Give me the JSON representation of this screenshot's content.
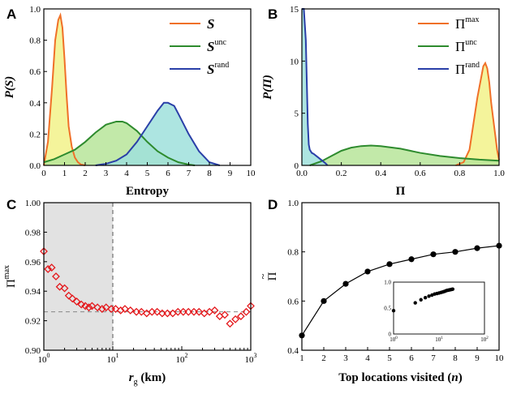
{
  "colors": {
    "max_line": "#f07028",
    "unc_line": "#2e8b2e",
    "rand_line": "#2a3fa8",
    "max_fill": "#f2f28a",
    "unc_fill": "#b7e59a",
    "rand_fill": "#9fe0dc",
    "marker_red": "#e4171b",
    "shade_gray": "#e2e2e2"
  },
  "chart_data": [
    {
      "panel": "A",
      "type": "area",
      "xlabel": "Entropy",
      "ylabel": "P(S)",
      "xlim": [
        0,
        10
      ],
      "ylim": [
        0,
        1.0
      ],
      "xticks": [
        "0",
        "1",
        "2",
        "3",
        "4",
        "5",
        "6",
        "7",
        "8",
        "9",
        "10"
      ],
      "yticks": [
        "0.0",
        "0.2",
        "0.4",
        "0.6",
        "0.8",
        "1.0"
      ],
      "legend_position": "top-right",
      "series": [
        {
          "name": "S",
          "sup": "",
          "color_key": "max",
          "x": [
            0,
            0.2,
            0.4,
            0.55,
            0.7,
            0.8,
            0.9,
            1.0,
            1.1,
            1.2,
            1.35,
            1.5,
            1.65,
            1.8,
            2.0
          ],
          "y": [
            0,
            0.15,
            0.5,
            0.8,
            0.93,
            0.96,
            0.88,
            0.68,
            0.45,
            0.25,
            0.12,
            0.05,
            0.02,
            0.005,
            0
          ]
        },
        {
          "name": "S",
          "sup": "unc",
          "color_key": "unc",
          "x": [
            0,
            0.5,
            1,
            1.5,
            2,
            2.5,
            3,
            3.5,
            3.8,
            4,
            4.5,
            5,
            5.5,
            6,
            6.5,
            7,
            7.3
          ],
          "y": [
            0.02,
            0.04,
            0.07,
            0.1,
            0.15,
            0.21,
            0.26,
            0.28,
            0.28,
            0.27,
            0.22,
            0.15,
            0.09,
            0.05,
            0.02,
            0.005,
            0
          ]
        },
        {
          "name": "S",
          "sup": "rand",
          "color_key": "rand",
          "x": [
            2.5,
            3,
            3.5,
            4,
            4.5,
            5,
            5.5,
            5.8,
            6,
            6.3,
            6.5,
            7,
            7.5,
            8,
            8.5
          ],
          "y": [
            0,
            0.01,
            0.03,
            0.07,
            0.15,
            0.25,
            0.35,
            0.4,
            0.4,
            0.38,
            0.33,
            0.2,
            0.09,
            0.02,
            0
          ]
        }
      ]
    },
    {
      "panel": "B",
      "type": "area",
      "xlabel": "Π",
      "ylabel": "P(Π)",
      "xlim": [
        0,
        1.0
      ],
      "ylim": [
        0,
        15
      ],
      "xticks": [
        "0.0",
        "0.2",
        "0.4",
        "0.6",
        "0.8",
        "1.0"
      ],
      "yticks": [
        "0",
        "5",
        "10",
        "15"
      ],
      "legend_position": "top-right",
      "series": [
        {
          "name": "Π",
          "sup": "max",
          "color_key": "max",
          "x": [
            0.78,
            0.82,
            0.85,
            0.87,
            0.89,
            0.91,
            0.92,
            0.93,
            0.94,
            0.95,
            0.96,
            0.97,
            0.98,
            0.99,
            1.0
          ],
          "y": [
            0,
            0.3,
            1.5,
            4,
            6.5,
            8.5,
            9.5,
            9.8,
            9.3,
            8,
            6,
            4.5,
            3,
            1.5,
            0.5
          ]
        },
        {
          "name": "Π",
          "sup": "unc",
          "color_key": "unc",
          "x": [
            0.04,
            0.1,
            0.15,
            0.2,
            0.25,
            0.3,
            0.35,
            0.4,
            0.5,
            0.6,
            0.7,
            0.8,
            0.9,
            1.0
          ],
          "y": [
            0,
            0.4,
            0.9,
            1.4,
            1.7,
            1.85,
            1.9,
            1.85,
            1.6,
            1.2,
            0.9,
            0.7,
            0.55,
            0.45
          ]
        },
        {
          "name": "Π",
          "sup": "rand",
          "color_key": "rand",
          "x": [
            0,
            0.01,
            0.02,
            0.025,
            0.03,
            0.035,
            0.04,
            0.05,
            0.06,
            0.08,
            0.1,
            0.12,
            0.13
          ],
          "y": [
            15,
            15,
            12,
            8,
            4,
            2,
            1.5,
            1.2,
            1.1,
            0.8,
            0.5,
            0.2,
            0
          ]
        }
      ]
    },
    {
      "panel": "C",
      "type": "scatter",
      "xlabel": "r",
      "xlabel_sub": "g",
      "xlabel_unit": "(km)",
      "ylabel": "Π",
      "ylabel_sup": "max",
      "xscale": "log",
      "xlim": [
        1,
        1000
      ],
      "ylim": [
        0.9,
        1.0
      ],
      "xticks": [
        {
          "b": "10",
          "e": "0"
        },
        {
          "b": "10",
          "e": "1"
        },
        {
          "b": "10",
          "e": "2"
        },
        {
          "b": "10",
          "e": "3"
        }
      ],
      "yticks": [
        "0.90",
        "0.92",
        "0.94",
        "0.96",
        "0.98",
        "1.00"
      ],
      "shaded_x": [
        1,
        10
      ],
      "dashed_vline": 10,
      "dashed_hline": 0.926,
      "x": [
        1.0,
        1.15,
        1.3,
        1.5,
        1.7,
        2.0,
        2.3,
        2.6,
        3.0,
        3.5,
        4.0,
        4.5,
        5.0,
        6.0,
        7.0,
        8.0,
        9.5,
        11,
        13,
        15,
        18,
        22,
        26,
        31,
        37,
        44,
        52,
        62,
        74,
        88,
        105,
        125,
        150,
        178,
        212,
        252,
        300,
        355,
        420,
        500,
        600,
        720,
        860,
        1000
      ],
      "y": [
        0.967,
        0.955,
        0.956,
        0.95,
        0.943,
        0.942,
        0.937,
        0.935,
        0.933,
        0.931,
        0.93,
        0.929,
        0.93,
        0.929,
        0.928,
        0.929,
        0.928,
        0.928,
        0.927,
        0.928,
        0.927,
        0.926,
        0.926,
        0.925,
        0.926,
        0.926,
        0.925,
        0.925,
        0.925,
        0.926,
        0.926,
        0.926,
        0.926,
        0.926,
        0.925,
        0.926,
        0.927,
        0.923,
        0.924,
        0.918,
        0.921,
        0.923,
        0.926,
        0.93
      ]
    },
    {
      "panel": "D",
      "type": "line",
      "xlabel": "Top locations visited",
      "xlabel_var": "n",
      "ylabel": "Π",
      "ylabel_accent": "~",
      "xlim": [
        1,
        10
      ],
      "ylim": [
        0.4,
        1.0
      ],
      "xticks": [
        "1",
        "2",
        "3",
        "4",
        "5",
        "6",
        "7",
        "8",
        "9",
        "10"
      ],
      "yticks": [
        "0.4",
        "0.6",
        "0.8",
        "1.0"
      ],
      "x": [
        1,
        2,
        3,
        4,
        5,
        6,
        7,
        8,
        9,
        10
      ],
      "y": [
        0.46,
        0.6,
        0.67,
        0.72,
        0.75,
        0.77,
        0.79,
        0.8,
        0.815,
        0.825
      ],
      "inset": {
        "xscale": "log",
        "xlim": [
          1,
          100
        ],
        "ylim": [
          0,
          1.0
        ],
        "xticks": [
          {
            "b": "10",
            "e": "0"
          },
          {
            "b": "10",
            "e": "1"
          },
          {
            "b": "10",
            "e": "2"
          }
        ],
        "yticks": [
          "0",
          "0.5",
          "1.0"
        ],
        "x": [
          1,
          3,
          4,
          5,
          6,
          7,
          8,
          9,
          10,
          11,
          12,
          13,
          14,
          15,
          16,
          17,
          18,
          19,
          20
        ],
        "y": [
          0.45,
          0.6,
          0.66,
          0.7,
          0.73,
          0.75,
          0.77,
          0.78,
          0.79,
          0.8,
          0.81,
          0.82,
          0.83,
          0.84,
          0.845,
          0.85,
          0.855,
          0.86,
          0.865
        ]
      }
    }
  ],
  "panel_letters": [
    "A",
    "B",
    "C",
    "D"
  ]
}
